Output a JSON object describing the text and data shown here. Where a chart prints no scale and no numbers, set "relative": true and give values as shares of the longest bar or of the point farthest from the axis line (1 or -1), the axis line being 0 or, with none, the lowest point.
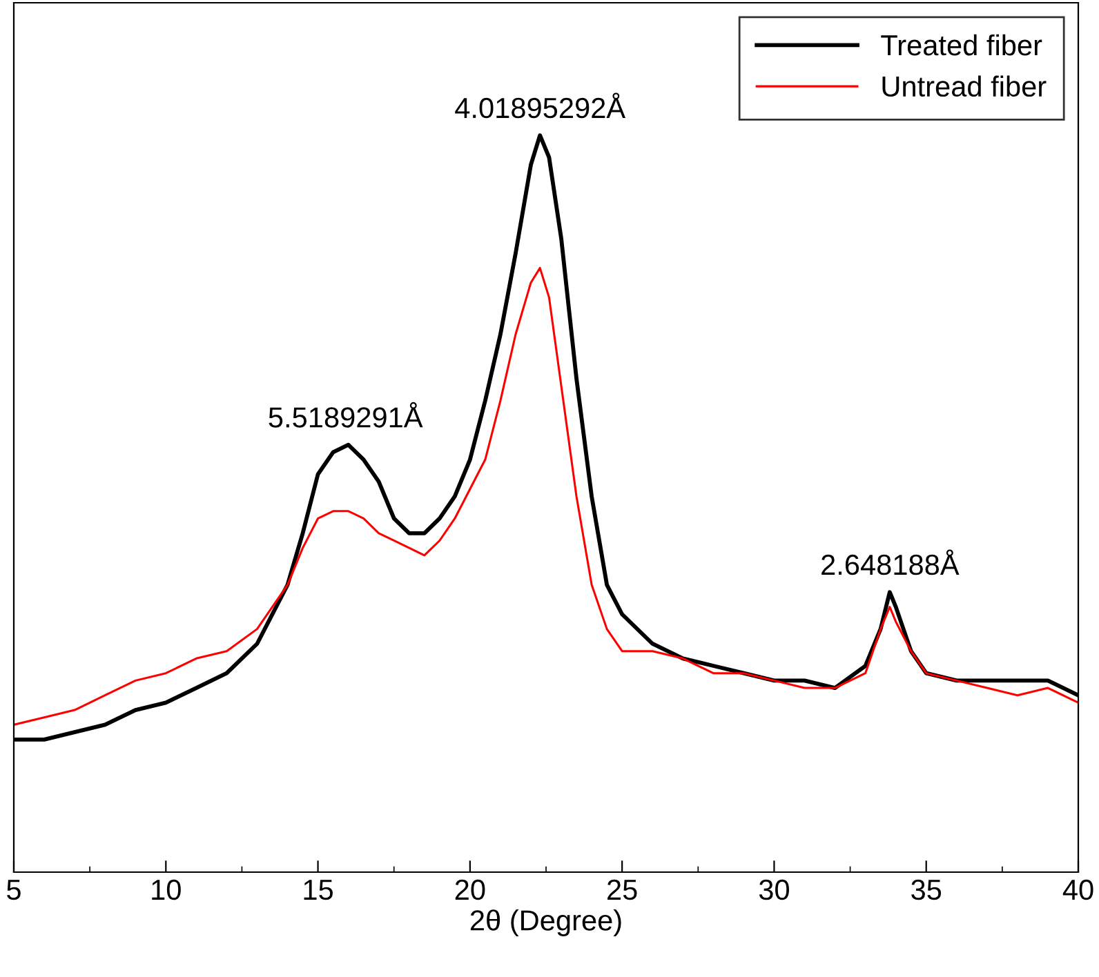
{
  "chart_data": {
    "type": "line",
    "xlabel": "2θ (Degree)",
    "relative": true,
    "tick_labels": "x",
    "xlim": [
      5,
      40
    ],
    "xticks": [
      5,
      10,
      15,
      20,
      25,
      30,
      35,
      40
    ],
    "legend": "top right",
    "grid": false,
    "marker": "none",
    "line_style": "solid",
    "x": [
      5,
      6,
      7,
      8,
      9,
      10,
      11,
      12,
      13,
      14,
      14.5,
      15,
      15.5,
      16,
      16.5,
      17,
      17.5,
      18,
      18.5,
      19,
      19.5,
      20,
      20.5,
      21,
      21.5,
      22,
      22.3,
      22.6,
      23,
      23.5,
      24,
      24.5,
      25,
      26,
      27,
      28,
      29,
      30,
      31,
      32,
      33,
      33.5,
      33.8,
      34,
      34.5,
      35,
      36,
      37,
      38,
      39,
      40
    ],
    "series": [
      {
        "name": "Treated fiber",
        "color": "#000000",
        "values": [
          0.18,
          0.18,
          0.19,
          0.2,
          0.22,
          0.23,
          0.25,
          0.27,
          0.31,
          0.39,
          0.46,
          0.54,
          0.57,
          0.58,
          0.56,
          0.53,
          0.48,
          0.46,
          0.46,
          0.48,
          0.51,
          0.56,
          0.64,
          0.73,
          0.84,
          0.96,
          1.0,
          0.97,
          0.86,
          0.67,
          0.51,
          0.39,
          0.35,
          0.31,
          0.29,
          0.28,
          0.27,
          0.26,
          0.26,
          0.25,
          0.28,
          0.33,
          0.38,
          0.36,
          0.3,
          0.27,
          0.26,
          0.26,
          0.26,
          0.26,
          0.24
        ]
      },
      {
        "name": "Untread fiber",
        "color": "#ff0000",
        "values": [
          0.2,
          0.21,
          0.22,
          0.24,
          0.26,
          0.27,
          0.29,
          0.3,
          0.33,
          0.39,
          0.44,
          0.48,
          0.49,
          0.49,
          0.48,
          0.46,
          0.45,
          0.44,
          0.43,
          0.45,
          0.48,
          0.52,
          0.56,
          0.64,
          0.73,
          0.8,
          0.82,
          0.78,
          0.66,
          0.51,
          0.39,
          0.33,
          0.3,
          0.3,
          0.29,
          0.27,
          0.27,
          0.26,
          0.25,
          0.25,
          0.27,
          0.33,
          0.36,
          0.34,
          0.3,
          0.27,
          0.26,
          0.25,
          0.24,
          0.25,
          0.23
        ]
      }
    ],
    "annotations": [
      {
        "text": "5.5189291Å",
        "x": 15.9,
        "y": 0.58
      },
      {
        "text": "4.01895292Å",
        "x": 22.3,
        "y": 1.0
      },
      {
        "text": "2.648188Å",
        "x": 33.8,
        "y": 0.38
      }
    ]
  }
}
